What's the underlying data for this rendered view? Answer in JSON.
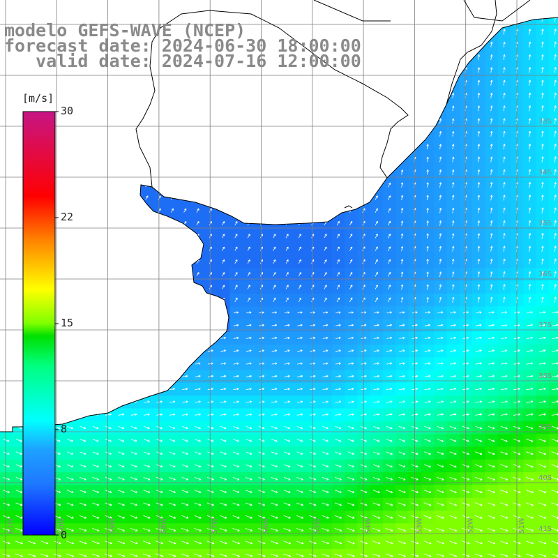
{
  "title": {
    "line1": "modelo GEFS-WAVE (NCEP)",
    "line2": "forecast date: 2024-06-30 18:00:00",
    "line3": "   valid date: 2024-07-16 12:00:00"
  },
  "colorbar": {
    "unit": "[m/s]",
    "ticks": [
      "30",
      "22",
      "15",
      "8",
      "0"
    ],
    "tick_values": [
      30,
      22,
      15,
      8,
      0
    ],
    "min": 0,
    "max": 30
  },
  "axes": {
    "lat_labels": [
      "33S",
      "34S",
      "35S",
      "36S",
      "37S",
      "38S",
      "39S",
      "40S",
      "41S"
    ],
    "lon_labels": [
      "61W",
      "60W",
      "59W",
      "58W",
      "57W",
      "56W",
      "55W",
      "54W",
      "53W",
      "52W",
      "51W"
    ]
  },
  "colors": {
    "land": "#ffffff",
    "coastline": "#000000",
    "grid": "#7f7f7f",
    "arrow": "#ffffff",
    "label": "#8a8a8a"
  }
}
